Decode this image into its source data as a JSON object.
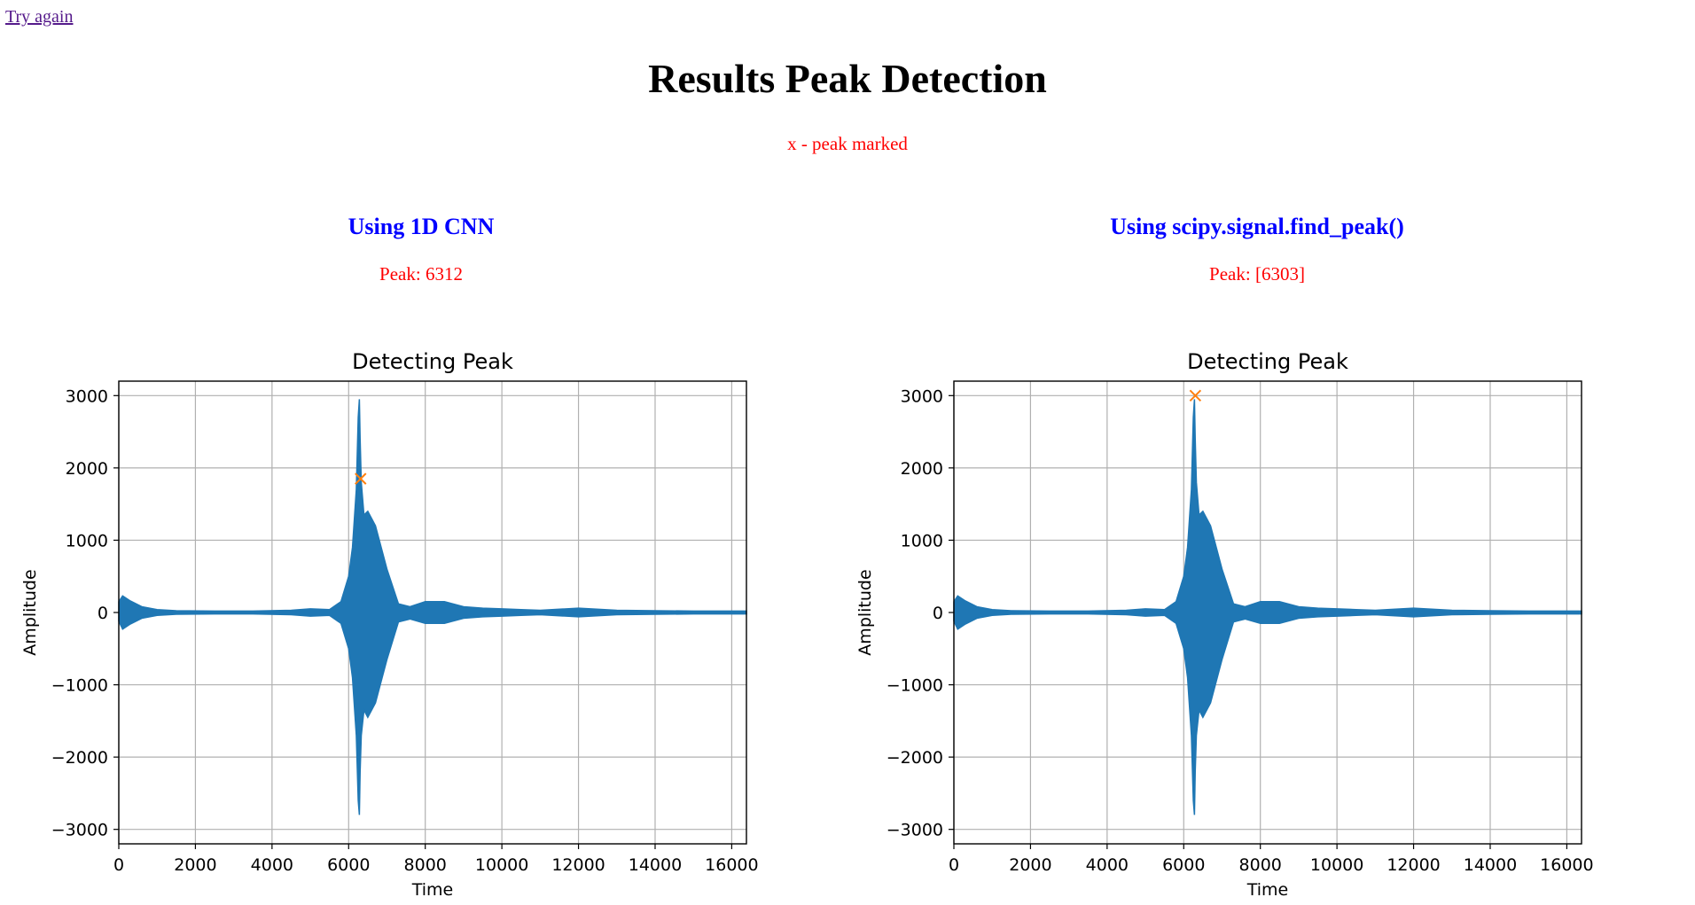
{
  "nav": {
    "try_again": "Try again"
  },
  "header": {
    "title": "Results Peak Detection",
    "note": "x - peak marked"
  },
  "columns": [
    {
      "title": "Using 1D CNN",
      "peak_text": "Peak: 6312"
    },
    {
      "title": "Using scipy.signal.find_peak()",
      "peak_text": "Peak: [6303]"
    }
  ],
  "colors": {
    "signal": "#1f77b4",
    "marker": "#ff7f0e",
    "link": "#551a8b",
    "note": "#ff0000",
    "heading": "#0000ff"
  },
  "chart_data": [
    {
      "type": "line",
      "title": "Detecting Peak",
      "xlabel": "Time",
      "ylabel": "Amplitude",
      "xlim": [
        0,
        16384
      ],
      "ylim": [
        -3200,
        3200
      ],
      "xticks": [
        0,
        2000,
        4000,
        6000,
        8000,
        10000,
        12000,
        14000,
        16000
      ],
      "xtick_labels": [
        "0",
        "2000",
        "4000",
        "6000",
        "8000",
        "10000",
        "12000",
        "14000",
        "16000"
      ],
      "yticks": [
        3000,
        2000,
        1000,
        0,
        -1000,
        -2000,
        -3000
      ],
      "ytick_labels": [
        "3000",
        "2000",
        "1000",
        "0",
        "−1000",
        "−2000",
        "−3000"
      ],
      "grid": true,
      "envelope": {
        "x": [
          0,
          100,
          300,
          600,
          1000,
          1500,
          2500,
          3500,
          4500,
          5000,
          5500,
          5800,
          6000,
          6100,
          6200,
          6250,
          6280,
          6300,
          6330,
          6400,
          6500,
          6700,
          7000,
          7300,
          7600,
          8000,
          8500,
          9000,
          9500,
          10000,
          10500,
          11000,
          12000,
          13000,
          14000,
          15000,
          16384
        ],
        "upper": [
          150,
          230,
          160,
          80,
          40,
          25,
          20,
          20,
          30,
          50,
          40,
          150,
          500,
          900,
          1700,
          2700,
          2950,
          2400,
          1800,
          1350,
          1400,
          1200,
          600,
          120,
          80,
          150,
          150,
          80,
          60,
          50,
          40,
          30,
          60,
          30,
          25,
          20,
          20
        ],
        "lower": [
          -120,
          -230,
          -160,
          -80,
          -40,
          -25,
          -20,
          -20,
          -30,
          -50,
          -40,
          -150,
          -500,
          -900,
          -1700,
          -2600,
          -2800,
          -2200,
          -1700,
          -1350,
          -1450,
          -1250,
          -650,
          -130,
          -90,
          -150,
          -150,
          -80,
          -60,
          -50,
          -40,
          -30,
          -60,
          -30,
          -25,
          -20,
          -20
        ]
      },
      "markers": [
        {
          "x": 6312,
          "y": 1850,
          "symbol": "x"
        }
      ]
    },
    {
      "type": "line",
      "title": "Detecting Peak",
      "xlabel": "Time",
      "ylabel": "Amplitude",
      "xlim": [
        0,
        16384
      ],
      "ylim": [
        -3200,
        3200
      ],
      "xticks": [
        0,
        2000,
        4000,
        6000,
        8000,
        10000,
        12000,
        14000,
        16000
      ],
      "xtick_labels": [
        "0",
        "2000",
        "4000",
        "6000",
        "8000",
        "10000",
        "12000",
        "14000",
        "16000"
      ],
      "yticks": [
        3000,
        2000,
        1000,
        0,
        -1000,
        -2000,
        -3000
      ],
      "ytick_labels": [
        "3000",
        "2000",
        "1000",
        "0",
        "−1000",
        "−2000",
        "−3000"
      ],
      "grid": true,
      "envelope": {
        "x": [
          0,
          100,
          300,
          600,
          1000,
          1500,
          2500,
          3500,
          4500,
          5000,
          5500,
          5800,
          6000,
          6100,
          6200,
          6250,
          6280,
          6300,
          6330,
          6400,
          6500,
          6700,
          7000,
          7300,
          7600,
          8000,
          8500,
          9000,
          9500,
          10000,
          10500,
          11000,
          12000,
          13000,
          14000,
          15000,
          16384
        ],
        "upper": [
          150,
          230,
          160,
          80,
          40,
          25,
          20,
          20,
          30,
          50,
          40,
          150,
          500,
          900,
          1700,
          2700,
          2950,
          2400,
          1800,
          1350,
          1400,
          1200,
          600,
          120,
          80,
          150,
          150,
          80,
          60,
          50,
          40,
          30,
          60,
          30,
          25,
          20,
          20
        ],
        "lower": [
          -120,
          -230,
          -160,
          -80,
          -40,
          -25,
          -20,
          -20,
          -30,
          -50,
          -40,
          -150,
          -500,
          -900,
          -1700,
          -2600,
          -2800,
          -2200,
          -1700,
          -1350,
          -1450,
          -1250,
          -650,
          -130,
          -90,
          -150,
          -150,
          -80,
          -60,
          -50,
          -40,
          -30,
          -60,
          -30,
          -25,
          -20,
          -20
        ]
      },
      "markers": [
        {
          "x": 6303,
          "y": 3000,
          "symbol": "x"
        }
      ]
    }
  ]
}
